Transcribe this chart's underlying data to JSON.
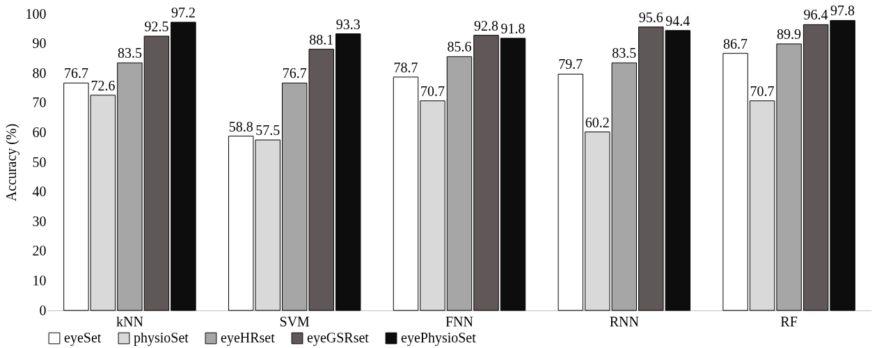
{
  "chart_data": {
    "type": "bar",
    "ylabel": "Accuracy (%)",
    "categories": [
      "kNN",
      "SVM",
      "FNN",
      "RNN",
      "RF"
    ],
    "series": [
      {
        "name": "eyeSet",
        "color": "#ffffff",
        "values": [
          76.7,
          58.8,
          78.7,
          79.7,
          86.7
        ]
      },
      {
        "name": "physioSet",
        "color": "#d9d9d9",
        "values": [
          72.6,
          57.5,
          70.7,
          60.2,
          70.7
        ]
      },
      {
        "name": "eyeHRset",
        "color": "#a6a6a6",
        "values": [
          83.5,
          76.7,
          85.6,
          83.5,
          89.9
        ]
      },
      {
        "name": "eyeGSRset",
        "color": "#605858",
        "values": [
          92.5,
          88.1,
          92.8,
          95.6,
          96.4
        ]
      },
      {
        "name": "eyePhysioSet",
        "color": "#0d0d0d",
        "values": [
          97.2,
          93.3,
          91.8,
          94.4,
          97.8
        ]
      }
    ],
    "ylim": [
      0,
      100
    ],
    "yticks": [
      0,
      10,
      20,
      30,
      40,
      50,
      60,
      70,
      80,
      90,
      100
    ],
    "grid": false,
    "legend": "bottom",
    "data_labels": true
  }
}
